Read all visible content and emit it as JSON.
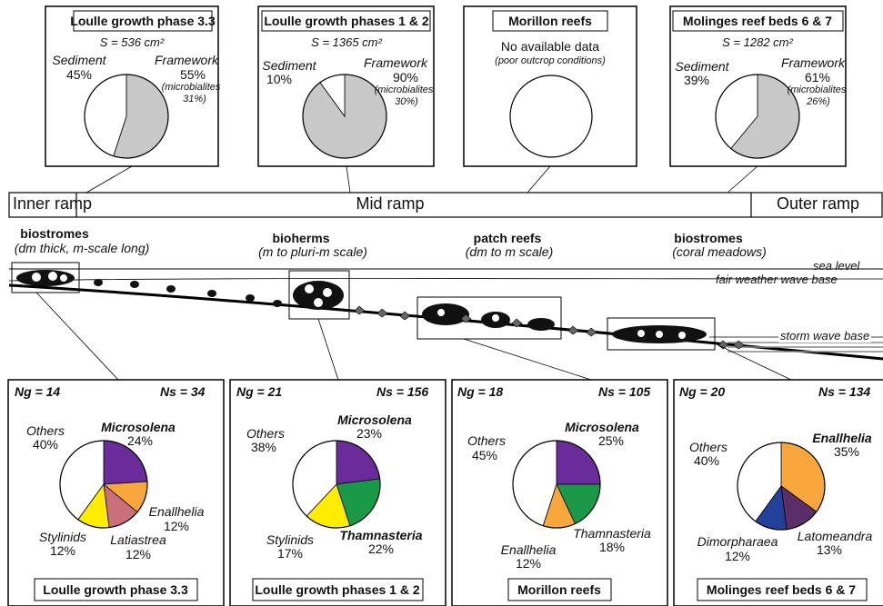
{
  "colors": {
    "framework": "#c8c8c8",
    "microsolena": "#6a2c9a",
    "enallhelia": "#f7a73c",
    "stylinids": "#ffec00",
    "latiastrea": "#c9707a",
    "thamnasteria": "#1a9a48",
    "latomeandra": "#5b2e6a",
    "dimorpharaea": "#23409b",
    "others": "#ffffff"
  },
  "top_panels": [
    {
      "title": "Loulle growth phase 3.3",
      "area": "S = 536 cm²",
      "left_label": "Sediment",
      "left_pct": "45%",
      "right_label": "Framework",
      "right_pct": "55%",
      "micro": "(microbialites",
      "micro_pct": "31%)"
    },
    {
      "title": "Loulle growth phases 1 & 2",
      "area": "S = 1365 cm²",
      "left_label": "Sediment",
      "left_pct": "10%",
      "right_label": "Framework",
      "right_pct": "90%",
      "micro": "(microbialites",
      "micro_pct": "30%)"
    },
    {
      "title": "Morillon reefs",
      "no_data": "No available data",
      "no_data_note": "(poor outcrop conditions)"
    },
    {
      "title": "Molinges reef beds 6 & 7",
      "area": "S = 1282 cm²",
      "left_label": "Sediment",
      "left_pct": "39%",
      "right_label": "Framework",
      "right_pct": "61%",
      "micro": "(microbialites",
      "micro_pct": "26%)"
    }
  ],
  "ramp": {
    "inner": "Inner ramp",
    "mid": "Mid ramp",
    "outer": "Outer ramp"
  },
  "facies": [
    {
      "name": "biostromes",
      "desc": "(dm thick, m-scale long)"
    },
    {
      "name": "bioherms",
      "desc": "(m to pluri-m scale)"
    },
    {
      "name": "patch reefs",
      "desc": "(dm to m scale)"
    },
    {
      "name": "biostromes",
      "desc": "(coral meadows)"
    }
  ],
  "levels": {
    "sea": "sea level",
    "fwwb": "fair weather wave base",
    "swb": "storm wave base"
  },
  "bottom_panels": [
    {
      "ng": "Ng = 14",
      "ns": "Ns = 34",
      "title": "Loulle growth phase 3.3",
      "slices": [
        {
          "label": "Microsolena",
          "pct": "24%"
        },
        {
          "label": "Enallhelia",
          "pct": "12%"
        },
        {
          "label": "Latiastrea",
          "pct": "12%"
        },
        {
          "label": "Stylinids",
          "pct": "12%"
        },
        {
          "label": "Others",
          "pct": "40%"
        }
      ]
    },
    {
      "ng": "Ng = 21",
      "ns": "Ns = 156",
      "title": "Loulle growth phases 1 & 2",
      "slices": [
        {
          "label": "Microsolena",
          "pct": "23%"
        },
        {
          "label": "Thamnasteria",
          "pct": "22%"
        },
        {
          "label": "Stylinids",
          "pct": "17%"
        },
        {
          "label": "Others",
          "pct": "38%"
        }
      ]
    },
    {
      "ng": "Ng = 18",
      "ns": "Ns = 105",
      "title": "Morillon reefs",
      "slices": [
        {
          "label": "Microsolena",
          "pct": "25%"
        },
        {
          "label": "Thamnasteria",
          "pct": "18%"
        },
        {
          "label": "Enallhelia",
          "pct": "12%"
        },
        {
          "label": "Others",
          "pct": "45%"
        }
      ]
    },
    {
      "ng": "Ng = 20",
      "ns": "Ns = 134",
      "title": "Molinges reef beds 6 & 7",
      "slices": [
        {
          "label": "Enallhelia",
          "pct": "35%"
        },
        {
          "label": "Latomeandra",
          "pct": "13%"
        },
        {
          "label": "Dimorpharaea",
          "pct": "12%"
        },
        {
          "label": "Others",
          "pct": "40%"
        }
      ]
    }
  ],
  "pie_values": {
    "top": [
      {
        "framework": 55,
        "sediment": 45
      },
      {
        "framework": 90,
        "sediment": 10
      },
      null,
      {
        "framework": 61,
        "sediment": 39
      }
    ],
    "bottom": [
      [
        {
          "v": 24,
          "c": "microsolena"
        },
        {
          "v": 12,
          "c": "enallhelia"
        },
        {
          "v": 12,
          "c": "latiastrea"
        },
        {
          "v": 12,
          "c": "stylinids"
        },
        {
          "v": 40,
          "c": "others"
        }
      ],
      [
        {
          "v": 23,
          "c": "microsolena"
        },
        {
          "v": 22,
          "c": "thamnasteria"
        },
        {
          "v": 17,
          "c": "stylinids"
        },
        {
          "v": 38,
          "c": "others"
        }
      ],
      [
        {
          "v": 25,
          "c": "microsolena"
        },
        {
          "v": 18,
          "c": "thamnasteria"
        },
        {
          "v": 12,
          "c": "enallhelia"
        },
        {
          "v": 45,
          "c": "others"
        }
      ],
      [
        {
          "v": 35,
          "c": "enallhelia"
        },
        {
          "v": 13,
          "c": "latomeandra"
        },
        {
          "v": 12,
          "c": "dimorpharaea"
        },
        {
          "v": 40,
          "c": "others"
        }
      ]
    ]
  }
}
